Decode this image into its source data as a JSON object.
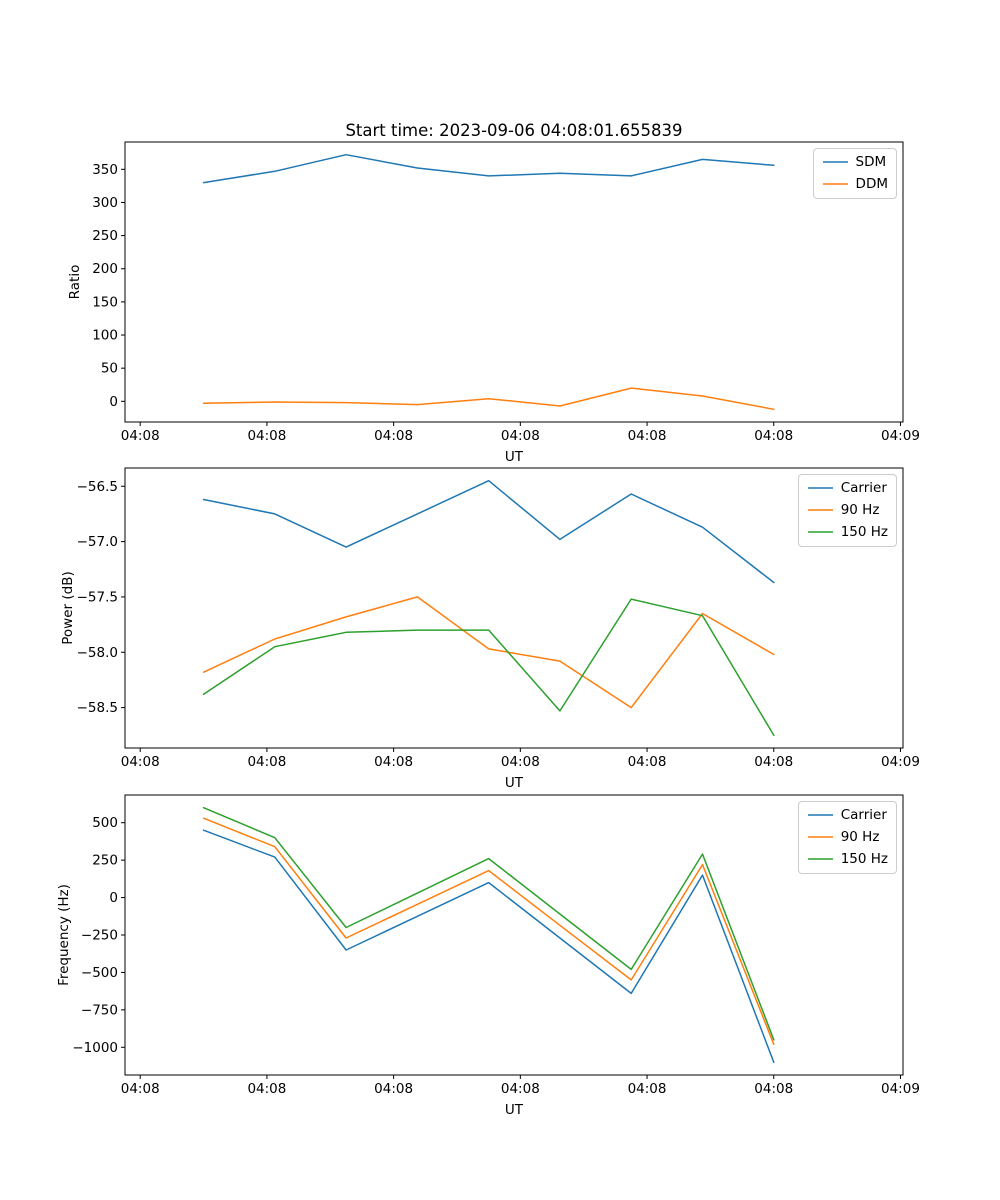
{
  "chart_data": [
    {
      "id": "ratio",
      "type": "line",
      "title": "Start time: 2023-09-06 04:08:01.655839",
      "xlabel": "UT",
      "ylabel": "Ratio",
      "xlim": [
        -1.2,
        60.2
      ],
      "ylim": [
        -31.2,
        391.2
      ],
      "legend_position": "upper right",
      "grid": false,
      "x": [
        5,
        10.625,
        16.25,
        21.875,
        27.5,
        33.125,
        38.75,
        44.375,
        50
      ],
      "xticks": [
        {
          "pos": 0,
          "label": "04:08"
        },
        {
          "pos": 10,
          "label": "04:08"
        },
        {
          "pos": 20,
          "label": "04:08"
        },
        {
          "pos": 30,
          "label": "04:08"
        },
        {
          "pos": 40,
          "label": "04:08"
        },
        {
          "pos": 50,
          "label": "04:08"
        },
        {
          "pos": 60,
          "label": "04:09"
        }
      ],
      "yticks": [
        {
          "pos": 0,
          "label": "0"
        },
        {
          "pos": 50,
          "label": "50"
        },
        {
          "pos": 100,
          "label": "100"
        },
        {
          "pos": 150,
          "label": "150"
        },
        {
          "pos": 200,
          "label": "200"
        },
        {
          "pos": 250,
          "label": "250"
        },
        {
          "pos": 300,
          "label": "300"
        },
        {
          "pos": 350,
          "label": "350"
        }
      ],
      "series": [
        {
          "name": "SDM",
          "color": "#1f77b4",
          "values": [
            330,
            347,
            372,
            352,
            340,
            344,
            340,
            365,
            356
          ]
        },
        {
          "name": "DDM",
          "color": "#ff7f0e",
          "values": [
            -3,
            -1,
            -2,
            -5,
            4,
            -7,
            20,
            8,
            -12
          ]
        }
      ]
    },
    {
      "id": "power",
      "type": "line",
      "title": "",
      "xlabel": "UT",
      "ylabel": "Power (dB)",
      "xlim": [
        -1.2,
        60.2
      ],
      "ylim": [
        -58.865,
        -56.335
      ],
      "legend_position": "upper right",
      "grid": false,
      "x": [
        5,
        10.625,
        16.25,
        21.875,
        27.5,
        33.125,
        38.75,
        44.375,
        50
      ],
      "xticks": [
        {
          "pos": 0,
          "label": "04:08"
        },
        {
          "pos": 10,
          "label": "04:08"
        },
        {
          "pos": 20,
          "label": "04:08"
        },
        {
          "pos": 30,
          "label": "04:08"
        },
        {
          "pos": 40,
          "label": "04:08"
        },
        {
          "pos": 50,
          "label": "04:08"
        },
        {
          "pos": 60,
          "label": "04:09"
        }
      ],
      "yticks": [
        {
          "pos": -58.5,
          "label": "−58.5"
        },
        {
          "pos": -58.0,
          "label": "−58.0"
        },
        {
          "pos": -57.5,
          "label": "−57.5"
        },
        {
          "pos": -57.0,
          "label": "−57.0"
        },
        {
          "pos": -56.5,
          "label": "−56.5"
        }
      ],
      "series": [
        {
          "name": "Carrier",
          "color": "#1f77b4",
          "values": [
            -56.62,
            -56.75,
            -57.05,
            -56.75,
            -56.45,
            -56.98,
            -56.57,
            -56.87,
            -57.37
          ]
        },
        {
          "name": "90 Hz",
          "color": "#ff7f0e",
          "values": [
            -58.18,
            -57.88,
            -57.68,
            -57.5,
            -57.97,
            -58.08,
            -58.5,
            -57.65,
            -58.02
          ]
        },
        {
          "name": "150 Hz",
          "color": "#2ca02c",
          "values": [
            -58.38,
            -57.95,
            -57.82,
            -57.8,
            -57.8,
            -58.53,
            -57.52,
            -57.67,
            -58.75
          ]
        }
      ]
    },
    {
      "id": "frequency",
      "type": "line",
      "title": "",
      "xlabel": "UT",
      "ylabel": "Frequency (Hz)",
      "xlim": [
        -1.2,
        60.2
      ],
      "ylim": [
        -1185,
        685
      ],
      "legend_position": "upper right",
      "grid": false,
      "x": [
        5,
        10.625,
        16.25,
        21.875,
        27.5,
        33.125,
        38.75,
        44.375,
        50
      ],
      "xticks": [
        {
          "pos": 0,
          "label": "04:08"
        },
        {
          "pos": 10,
          "label": "04:08"
        },
        {
          "pos": 20,
          "label": "04:08"
        },
        {
          "pos": 30,
          "label": "04:08"
        },
        {
          "pos": 40,
          "label": "04:08"
        },
        {
          "pos": 50,
          "label": "04:08"
        },
        {
          "pos": 60,
          "label": "04:09"
        }
      ],
      "yticks": [
        {
          "pos": -1000,
          "label": "−1000"
        },
        {
          "pos": -750,
          "label": "−750"
        },
        {
          "pos": -500,
          "label": "−500"
        },
        {
          "pos": -250,
          "label": "−250"
        },
        {
          "pos": 0,
          "label": "0"
        },
        {
          "pos": 250,
          "label": "250"
        },
        {
          "pos": 500,
          "label": "500"
        }
      ],
      "series": [
        {
          "name": "Carrier",
          "color": "#1f77b4",
          "values": [
            450,
            270,
            -350,
            -125,
            100,
            -270,
            -640,
            150,
            -1100
          ]
        },
        {
          "name": "90 Hz",
          "color": "#ff7f0e",
          "values": [
            530,
            340,
            -270,
            -45,
            180,
            -185,
            -550,
            220,
            -980
          ]
        },
        {
          "name": "150 Hz",
          "color": "#2ca02c",
          "values": [
            600,
            400,
            -200,
            30,
            260,
            -110,
            -480,
            290,
            -950
          ]
        }
      ]
    }
  ]
}
